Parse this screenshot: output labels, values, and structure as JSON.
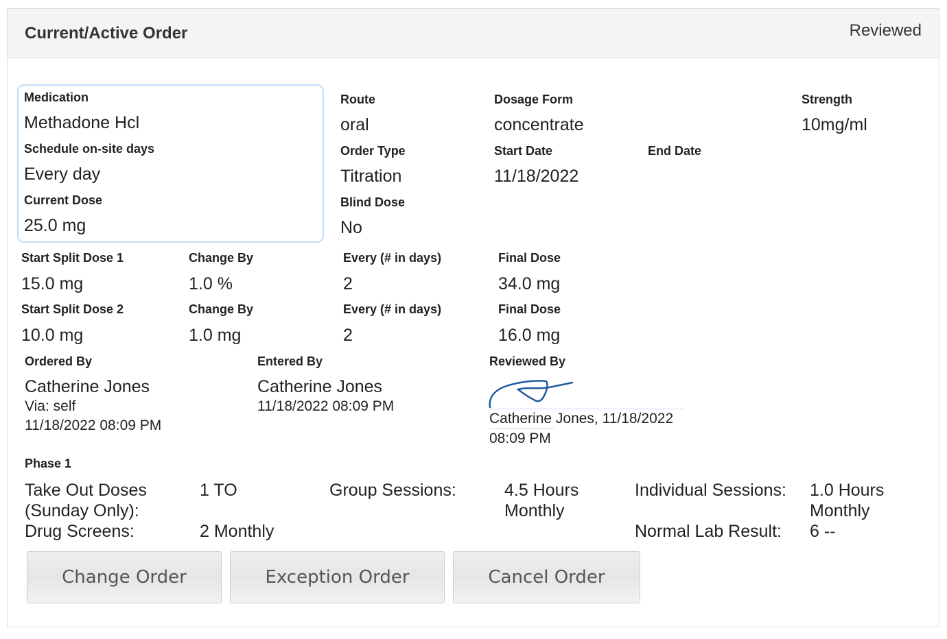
{
  "header": {
    "title": "Current/Active Order",
    "status": "Reviewed"
  },
  "medication": {
    "label": "Medication",
    "value": "Methadone Hcl"
  },
  "schedule": {
    "label": "Schedule on-site days",
    "value": "Every day"
  },
  "current_dose": {
    "label": "Current Dose",
    "value": "25.0 mg"
  },
  "route": {
    "label": "Route",
    "value": "oral"
  },
  "dosage_form": {
    "label": "Dosage Form",
    "value": "concentrate"
  },
  "strength": {
    "label": "Strength",
    "value": "10mg/ml"
  },
  "order_type": {
    "label": "Order Type",
    "value": "Titration"
  },
  "start_date": {
    "label": "Start Date",
    "value": "11/18/2022"
  },
  "end_date": {
    "label": "End Date",
    "value": ""
  },
  "blind_dose": {
    "label": "Blind Dose",
    "value": "No"
  },
  "split1": {
    "start_label": "Start Split Dose 1",
    "start": "15.0 mg",
    "change_label": "Change By",
    "change": "1.0 %",
    "every_label": "Every (# in days)",
    "every": "2",
    "final_label": "Final Dose",
    "final": "34.0 mg"
  },
  "split2": {
    "start_label": "Start Split Dose 2",
    "start": "10.0 mg",
    "change_label": "Change By",
    "change": "1.0 mg",
    "every_label": "Every (# in days)",
    "every": "2",
    "final_label": "Final Dose",
    "final": "16.0 mg"
  },
  "ordered_by": {
    "label": "Ordered By",
    "name": "Catherine Jones",
    "via": "Via: self",
    "time": "11/18/2022 08:09 PM"
  },
  "entered_by": {
    "label": "Entered By",
    "name": "Catherine Jones",
    "time": "11/18/2022 08:09 PM"
  },
  "reviewed_by": {
    "label": "Reviewed By",
    "line1": "Catherine Jones, 11/18/2022",
    "line2": "08:09 PM",
    "signature_color": "#1f5aa0"
  },
  "phase": {
    "title": "Phase 1",
    "take_out_label": "Take Out Doses (Sunday Only):",
    "take_out": "1 TO",
    "group_label": "Group Sessions:",
    "group": "4.5 Hours Monthly",
    "individual_label": "Individual Sessions:",
    "individual": "1.0 Hours Monthly",
    "drug_label": "Drug Screens:",
    "drug": "2 Monthly",
    "lab_label": "Normal Lab Result:",
    "lab": "6 --"
  },
  "buttons": {
    "change": "Change Order",
    "exception": "Exception Order",
    "cancel": "Cancel Order"
  }
}
